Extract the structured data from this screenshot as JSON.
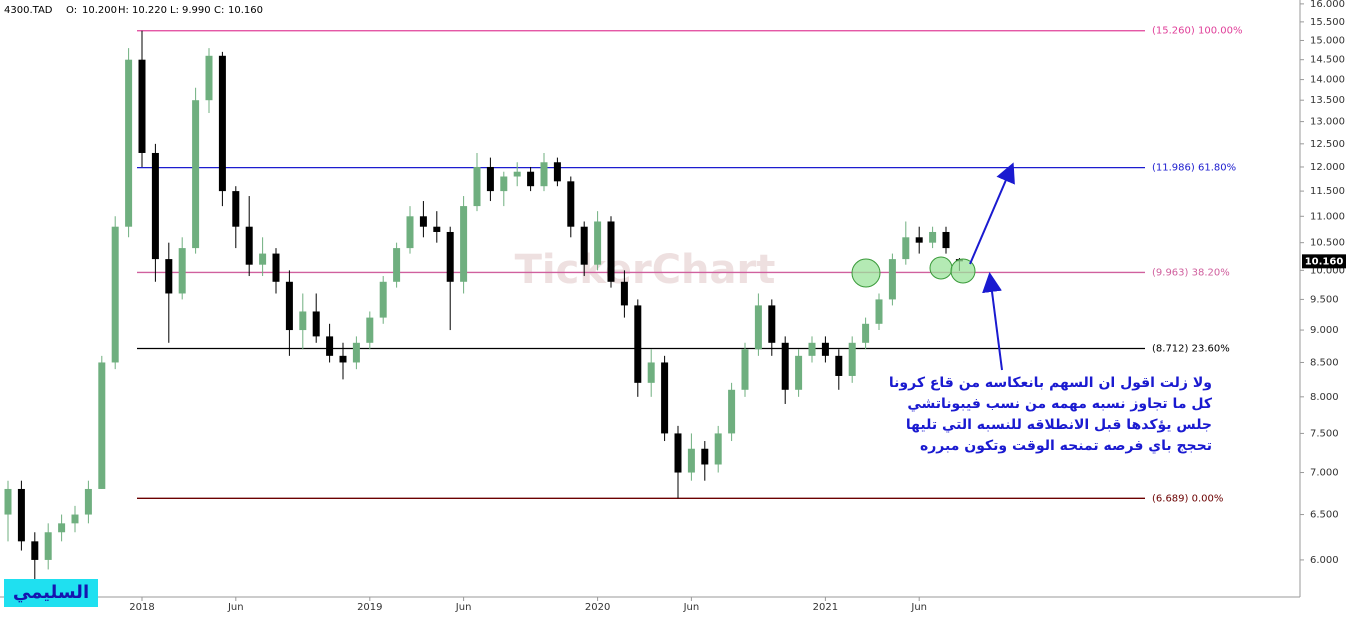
{
  "header": {
    "symbol": "4300.TAD",
    "open_label": "O:",
    "open": "10.200",
    "high_label": "H:",
    "high": "10.220",
    "low_label": "L:",
    "low": "9.990",
    "close_label": "C:",
    "close": "10.160"
  },
  "watermark": "TickerChart",
  "author": "السليمي",
  "annotation": [
    "ولا زلت اقول ان السهم بانعكاسه من قاع كرونا",
    "كل ما تجاوز نسبه مهمه من نسب فيبوناتشي",
    "جلس يؤكدها قبل الانطلاقه للنسبه التي تليها",
    "تحجج باي فرصه تمنحه الوقت وتكون مبرره"
  ],
  "chart_data": {
    "type": "candlestick",
    "log_scale": true,
    "up_color": "#6faf7f",
    "down_color": "#000000",
    "categories": [
      null,
      null,
      null,
      null,
      null,
      null,
      null,
      null,
      null,
      null,
      "2018",
      null,
      null,
      null,
      null,
      null,
      null,
      "Jun",
      null,
      null,
      null,
      null,
      null,
      null,
      null,
      null,
      null,
      "2019",
      null,
      null,
      null,
      null,
      null,
      null,
      "Jun",
      null,
      null,
      null,
      null,
      null,
      null,
      null,
      null,
      null,
      "2020",
      null,
      null,
      null,
      null,
      null,
      null,
      "Jun",
      null,
      null,
      null,
      null,
      null,
      null,
      null,
      null,
      null,
      "2021",
      null,
      null,
      null,
      null,
      null,
      null,
      "Jun",
      null,
      null,
      null
    ],
    "open": [
      6.5,
      6.8,
      6.2,
      6.0,
      6.3,
      6.4,
      6.5,
      6.8,
      8.5,
      10.8,
      14.5,
      12.3,
      10.2,
      9.6,
      10.4,
      13.5,
      14.6,
      11.5,
      10.8,
      10.1,
      10.3,
      9.8,
      9.0,
      9.3,
      8.9,
      8.6,
      8.5,
      8.8,
      9.2,
      9.8,
      10.4,
      11.0,
      10.8,
      10.7,
      9.8,
      11.2,
      12.0,
      11.5,
      11.8,
      11.9,
      11.6,
      12.1,
      11.7,
      10.8,
      10.1,
      10.9,
      9.8,
      9.4,
      8.2,
      8.5,
      7.5,
      7.0,
      7.3,
      7.1,
      7.5,
      8.1,
      8.7,
      9.4,
      8.8,
      8.1,
      8.6,
      8.8,
      8.6,
      8.3,
      8.8,
      9.1,
      9.5,
      10.2,
      10.6,
      10.5,
      10.7,
      10.2
    ],
    "high": [
      6.9,
      6.9,
      6.3,
      6.4,
      6.5,
      6.6,
      6.9,
      8.6,
      11.0,
      14.8,
      15.26,
      12.5,
      10.5,
      10.6,
      13.8,
      14.8,
      14.7,
      11.6,
      11.4,
      10.6,
      10.4,
      10.0,
      9.6,
      9.6,
      9.1,
      8.8,
      8.9,
      9.3,
      9.9,
      10.5,
      11.2,
      11.3,
      11.1,
      10.8,
      11.4,
      12.3,
      12.2,
      11.9,
      12.1,
      12.0,
      12.3,
      12.2,
      11.8,
      10.9,
      11.1,
      11.0,
      10.0,
      9.5,
      8.7,
      8.6,
      7.6,
      7.5,
      7.4,
      7.6,
      8.2,
      8.8,
      9.6,
      9.5,
      8.9,
      8.7,
      8.9,
      8.9,
      8.7,
      8.9,
      9.2,
      9.6,
      10.3,
      10.9,
      10.8,
      10.8,
      10.8,
      10.22
    ],
    "low": [
      6.2,
      6.1,
      5.8,
      5.9,
      6.2,
      6.3,
      6.4,
      6.8,
      8.4,
      10.6,
      12.0,
      9.8,
      8.8,
      9.5,
      10.3,
      13.2,
      11.2,
      10.4,
      9.9,
      9.9,
      9.6,
      8.6,
      8.7,
      8.8,
      8.5,
      8.25,
      8.4,
      8.7,
      9.1,
      9.7,
      10.3,
      10.6,
      10.5,
      9.0,
      9.6,
      11.1,
      11.3,
      11.2,
      11.6,
      11.5,
      11.5,
      11.6,
      10.6,
      9.9,
      10.0,
      9.7,
      9.2,
      8.0,
      8.0,
      7.4,
      6.689,
      6.9,
      6.9,
      7.0,
      7.4,
      8.0,
      8.6,
      8.6,
      7.9,
      8.0,
      8.5,
      8.5,
      8.1,
      8.2,
      8.7,
      9.0,
      9.4,
      10.1,
      10.3,
      10.4,
      10.3,
      9.99
    ],
    "close": [
      6.8,
      6.2,
      6.0,
      6.3,
      6.4,
      6.5,
      6.8,
      8.5,
      10.8,
      14.5,
      12.3,
      10.2,
      9.6,
      10.4,
      13.5,
      14.6,
      11.5,
      10.8,
      10.1,
      10.3,
      9.8,
      9.0,
      9.3,
      8.9,
      8.6,
      8.5,
      8.8,
      9.2,
      9.8,
      10.4,
      11.0,
      10.8,
      10.7,
      9.8,
      11.2,
      12.0,
      11.5,
      11.8,
      11.9,
      11.6,
      12.1,
      11.7,
      10.8,
      10.1,
      10.9,
      9.8,
      9.4,
      8.2,
      8.5,
      7.5,
      7.0,
      7.3,
      7.1,
      7.5,
      8.1,
      8.7,
      9.4,
      8.8,
      8.1,
      8.6,
      8.8,
      8.6,
      8.3,
      8.8,
      9.1,
      9.5,
      10.2,
      10.6,
      10.5,
      10.7,
      10.4,
      10.16
    ],
    "ylim": [
      5.64,
      16.11
    ],
    "yticks": [
      {
        "value": 6,
        "label": "6.000"
      },
      {
        "value": 6.5,
        "label": "6.500"
      },
      {
        "value": 7,
        "label": "7.000"
      },
      {
        "value": 7.5,
        "label": "7.500"
      },
      {
        "value": 8,
        "label": "8.000"
      },
      {
        "value": 8.5,
        "label": "8.500"
      },
      {
        "value": 9,
        "label": "9.000"
      },
      {
        "value": 9.5,
        "label": "9.500"
      },
      {
        "value": 10,
        "label": "10.000"
      },
      {
        "value": 10.5,
        "label": "10.500"
      },
      {
        "value": 11,
        "label": "11.000"
      },
      {
        "value": 11.5,
        "label": "11.500"
      },
      {
        "value": 12,
        "label": "12.000"
      },
      {
        "value": 12.5,
        "label": "12.500"
      },
      {
        "value": 13,
        "label": "13.000"
      },
      {
        "value": 13.5,
        "label": "13.500"
      },
      {
        "value": 14,
        "label": "14.000"
      },
      {
        "value": 14.5,
        "label": "14.500"
      },
      {
        "value": 15,
        "label": "15.000"
      },
      {
        "value": 15.5,
        "label": "15.500"
      },
      {
        "value": 16,
        "label": "16.000"
      }
    ],
    "levels": [
      {
        "value": 15.26,
        "label": "(15.260) 100.00%",
        "color": "#e0409a"
      },
      {
        "value": 11.986,
        "label": "(11.986) 61.80%",
        "color": "#1c1ccf"
      },
      {
        "value": 9.963,
        "label": "(9.963) 38.20%",
        "color": "#d0609e"
      },
      {
        "value": 8.712,
        "label": "(8.712) 23.60%",
        "color": "#000000"
      },
      {
        "value": 6.689,
        "label": "(6.689) 0.00%",
        "color": "#6b0000"
      }
    ],
    "last_price": {
      "value": 10.16,
      "label": "10.160"
    }
  }
}
